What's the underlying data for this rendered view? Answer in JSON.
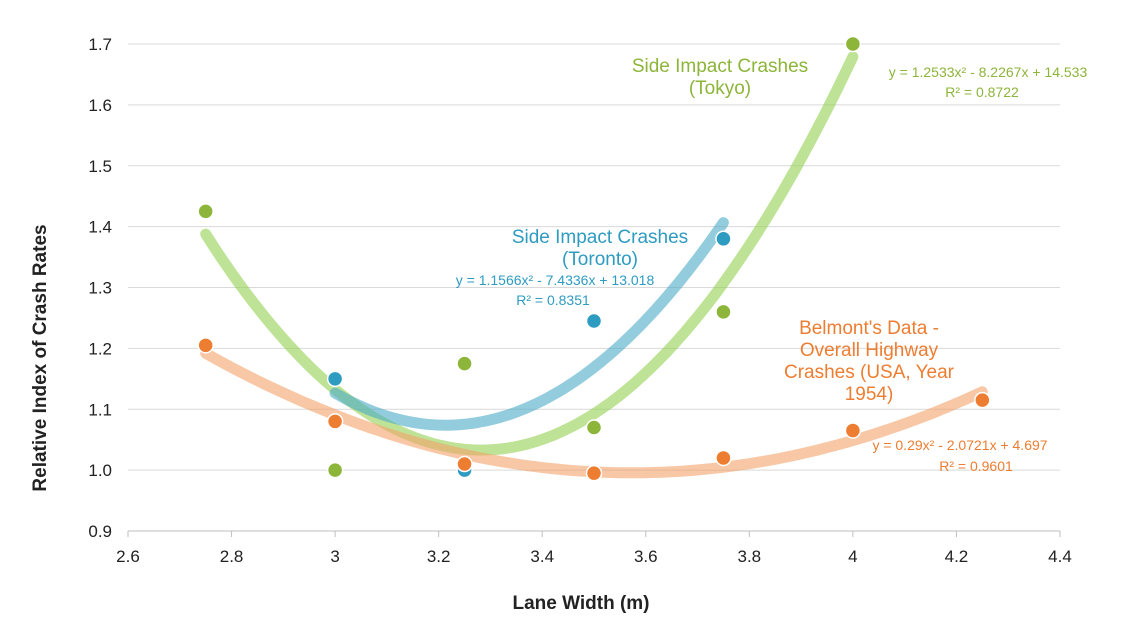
{
  "chart_data": {
    "type": "scatter",
    "xlabel": "Lane Width (m)",
    "ylabel": "Relative Index of Crash Rates",
    "xlim": [
      2.6,
      4.4
    ],
    "ylim": [
      0.9,
      1.7
    ],
    "x_ticks": [
      "2.6",
      "2.8",
      "3",
      "3.2",
      "3.4",
      "3.6",
      "3.8",
      "4",
      "4.2",
      "4.4"
    ],
    "y_ticks": [
      "0.9",
      "1.0",
      "1.1",
      "1.2",
      "1.3",
      "1.4",
      "1.5",
      "1.6",
      "1.7"
    ],
    "grid": "horizontal",
    "series": [
      {
        "key": "tokyo",
        "label_lines": [
          "Side Impact Crashes",
          "(Tokyo)"
        ],
        "equation": "y = 1.2533x² - 8.2267x + 14.533",
        "r2": "R² = 0.8722",
        "color": "#8db53a",
        "trend_color": "#92d050",
        "trend": {
          "a": 1.2533,
          "b": -8.2267,
          "c": 14.533,
          "x_range": [
            2.75,
            4.0
          ]
        },
        "points": [
          {
            "x": 2.75,
            "y": 1.425
          },
          {
            "x": 3.0,
            "y": 1.0
          },
          {
            "x": 3.25,
            "y": 1.175
          },
          {
            "x": 3.5,
            "y": 1.07
          },
          {
            "x": 3.75,
            "y": 1.26
          },
          {
            "x": 4.0,
            "y": 1.7
          }
        ]
      },
      {
        "key": "toronto",
        "label_lines": [
          "Side Impact Crashes",
          "(Toronto)"
        ],
        "equation": "y = 1.1566x² - 7.4336x + 13.018",
        "r2": "R² = 0.8351",
        "color": "#2e9bc0",
        "trend_color": "#4babc6",
        "trend": {
          "a": 1.1566,
          "b": -7.4336,
          "c": 13.018,
          "x_range": [
            3.0,
            3.75
          ]
        },
        "points": [
          {
            "x": 3.0,
            "y": 1.15
          },
          {
            "x": 3.25,
            "y": 1.0
          },
          {
            "x": 3.5,
            "y": 1.245
          },
          {
            "x": 3.75,
            "y": 1.38
          }
        ]
      },
      {
        "key": "belmont",
        "label_lines": [
          "Belmont's Data -",
          "Overall Highway",
          "Crashes (USA, Year",
          "1954)"
        ],
        "equation": "y = 0.29x² - 2.0721x + 4.697",
        "r2": "R² = 0.9601",
        "color": "#ed7d31",
        "trend_color": "#f4a46a",
        "trend": {
          "a": 0.29,
          "b": -2.0721,
          "c": 4.697,
          "x_range": [
            2.75,
            4.25
          ]
        },
        "points": [
          {
            "x": 2.75,
            "y": 1.205
          },
          {
            "x": 3.0,
            "y": 1.08
          },
          {
            "x": 3.25,
            "y": 1.01
          },
          {
            "x": 3.5,
            "y": 0.995
          },
          {
            "x": 3.75,
            "y": 1.02
          },
          {
            "x": 4.0,
            "y": 1.065
          },
          {
            "x": 4.25,
            "y": 1.115
          }
        ]
      }
    ]
  }
}
